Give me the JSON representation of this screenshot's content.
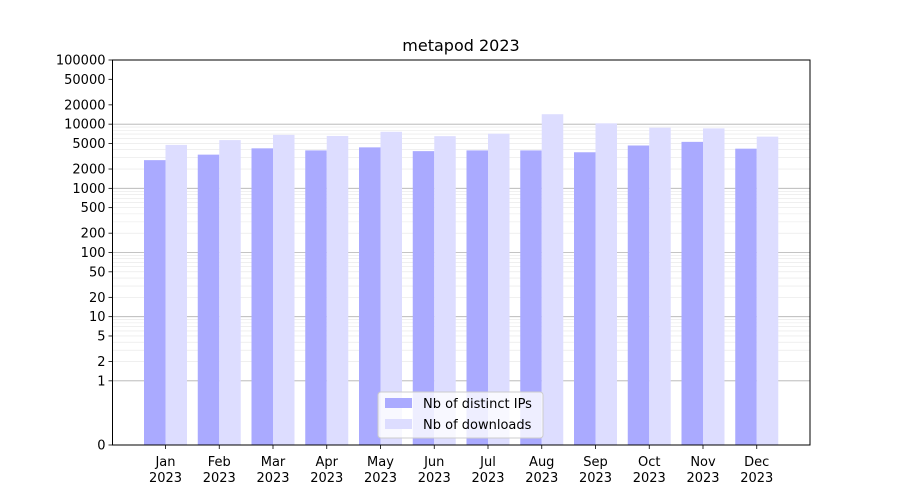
{
  "chart_data": {
    "type": "bar",
    "title": "metapod 2023",
    "xlabel": "",
    "ylabel": "",
    "y_scale": "symlog",
    "ylim": [
      0,
      100000
    ],
    "grid": "y-major-and-minor",
    "legend_position": "bottom-center",
    "categories": [
      "Jan\n2023",
      "Feb\n2023",
      "Mar\n2023",
      "Apr\n2023",
      "May\n2023",
      "Jun\n2023",
      "Jul\n2023",
      "Aug\n2023",
      "Sep\n2023",
      "Oct\n2023",
      "Nov\n2023",
      "Dec\n2023"
    ],
    "y_ticks": [
      0,
      1,
      2,
      5,
      10,
      20,
      50,
      100,
      200,
      500,
      1000,
      2000,
      5000,
      10000,
      20000,
      50000,
      100000
    ],
    "series": [
      {
        "name": "Nb of distinct IPs",
        "color": "#aaaaff",
        "values": [
          2750,
          3350,
          4200,
          3900,
          4350,
          3800,
          3900,
          3900,
          3650,
          4650,
          5300,
          4150
        ]
      },
      {
        "name": "Nb of downloads",
        "color": "#ddddff",
        "values": [
          4750,
          5650,
          6800,
          6550,
          7600,
          6500,
          7100,
          14300,
          10300,
          8800,
          8600,
          6400
        ]
      }
    ]
  }
}
